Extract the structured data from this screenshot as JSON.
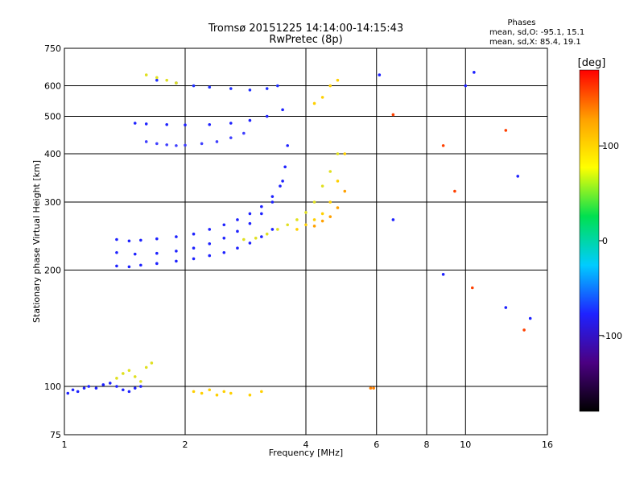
{
  "chart_data": {
    "type": "scatter",
    "title": "Tromsø 20151225 14:14:00-14:15:43",
    "subtitle": "RwPretec (8p)",
    "stats": {
      "heading": "Phases",
      "line_o": "mean, sd,O: -95.1, 15.1",
      "line_x": "mean, sd,X:  85.4, 19.1"
    },
    "xlabel": "Frequency [MHz]",
    "ylabel": "Stationary phase Virtual Height [km]",
    "x_scale": "log",
    "y_scale": "log",
    "xlim": [
      1,
      16
    ],
    "ylim": [
      75,
      750
    ],
    "x_ticks": [
      1,
      2,
      4,
      6,
      8,
      10,
      16
    ],
    "y_ticks": [
      75,
      100,
      200,
      300,
      400,
      500,
      600,
      750
    ],
    "grid": true,
    "colorbar": {
      "label": "[deg]",
      "range": [
        -180,
        180
      ],
      "ticks": [
        100,
        0,
        -100
      ],
      "colors": [
        "#000000",
        "#4b0082",
        "#1e22ff",
        "#00ccff",
        "#00e050",
        "#ffff00",
        "#ffa000",
        "#ff0000"
      ]
    },
    "series": [
      {
        "color": "#1e22ff",
        "x": [
          1.02,
          1.05,
          1.08,
          1.12,
          1.15,
          1.2,
          1.25,
          1.3,
          1.35,
          1.4,
          1.45,
          1.5,
          1.55
        ],
        "y": [
          96,
          98,
          97,
          99,
          100,
          99,
          101,
          102,
          100,
          98,
          97,
          99,
          100
        ]
      },
      {
        "color": "#e0e020",
        "x": [
          1.35,
          1.4,
          1.45,
          1.5,
          1.55,
          1.6,
          1.65
        ],
        "y": [
          105,
          108,
          110,
          106,
          103,
          112,
          115
        ]
      },
      {
        "color": "#ffd000",
        "x": [
          2.1,
          2.2,
          2.3,
          2.4,
          2.5,
          2.6,
          2.9,
          3.1
        ],
        "y": [
          97,
          96,
          98,
          95,
          97,
          96,
          95,
          97
        ]
      },
      {
        "color": "#ff8000",
        "x": [
          5.8,
          5.9
        ],
        "y": [
          99,
          99
        ]
      },
      {
        "color": "#1e22ff",
        "x": [
          1.35,
          1.45,
          1.55,
          1.7,
          1.9,
          2.1,
          2.3,
          2.5,
          2.7,
          2.9,
          3.1,
          3.3
        ],
        "y": [
          205,
          204,
          206,
          208,
          211,
          214,
          218,
          222,
          228,
          235,
          244,
          255
        ]
      },
      {
        "color": "#1e22ff",
        "x": [
          1.35,
          1.45,
          1.55,
          1.7,
          1.9,
          2.1,
          2.3,
          2.5,
          2.7,
          2.9,
          3.1,
          3.3,
          3.5
        ],
        "y": [
          240,
          238,
          239,
          241,
          244,
          248,
          255,
          262,
          270,
          280,
          292,
          310,
          340
        ]
      },
      {
        "color": "#1e22ff",
        "x": [
          1.35,
          1.5,
          1.7,
          1.9,
          2.1,
          2.3,
          2.5,
          2.7,
          2.9,
          3.1,
          3.3,
          3.45,
          3.55,
          3.6
        ],
        "y": [
          222,
          220,
          221,
          224,
          228,
          234,
          242,
          252,
          264,
          280,
          300,
          330,
          370,
          420
        ]
      },
      {
        "color": "#4040ff",
        "x": [
          1.6,
          1.7,
          1.8,
          1.9,
          2.0,
          2.2,
          2.4,
          2.6,
          2.8
        ],
        "y": [
          430,
          425,
          422,
          420,
          421,
          425,
          430,
          440,
          452
        ]
      },
      {
        "color": "#1e22ff",
        "x": [
          1.5,
          1.6,
          1.8,
          2.0,
          2.3,
          2.6,
          2.9,
          3.2,
          3.5
        ],
        "y": [
          480,
          478,
          476,
          475,
          476,
          480,
          488,
          500,
          520
        ]
      },
      {
        "color": "#2030ff",
        "x": [
          1.7,
          1.9,
          2.1,
          2.3,
          2.6,
          2.9,
          3.2,
          3.4
        ],
        "y": [
          620,
          610,
          600,
          595,
          590,
          585,
          590,
          600
        ]
      },
      {
        "color": "#e0e020",
        "x": [
          1.6,
          1.7,
          1.8,
          1.9
        ],
        "y": [
          640,
          630,
          620,
          610
        ]
      },
      {
        "color": "#e0e020",
        "x": [
          2.8,
          3.0,
          3.2,
          3.4,
          3.6,
          3.8,
          4.0,
          4.2,
          4.4,
          4.6,
          4.8
        ],
        "y": [
          240,
          242,
          248,
          255,
          262,
          270,
          282,
          300,
          330,
          360,
          400
        ]
      },
      {
        "color": "#ffd000",
        "x": [
          3.8,
          4.0,
          4.2,
          4.4,
          4.6,
          4.8,
          5.0
        ],
        "y": [
          255,
          262,
          270,
          280,
          300,
          340,
          400
        ]
      },
      {
        "color": "#ffa000",
        "x": [
          4.2,
          4.4,
          4.6,
          4.8,
          5.0
        ],
        "y": [
          260,
          268,
          275,
          290,
          320
        ]
      },
      {
        "color": "#ffd000",
        "x": [
          4.2,
          4.4,
          4.6,
          4.8
        ],
        "y": [
          540,
          560,
          600,
          620
        ]
      },
      {
        "color": "#ff4000",
        "x": [
          6.6,
          8.8,
          9.4,
          10.4,
          12.6,
          14.0
        ],
        "y": [
          505,
          420,
          320,
          180,
          460,
          140
        ]
      },
      {
        "color": "#1e22ff",
        "x": [
          6.1,
          6.6,
          8.8,
          10.0,
          10.5,
          12.6,
          13.5,
          14.5
        ],
        "y": [
          640,
          270,
          195,
          600,
          650,
          160,
          350,
          150
        ]
      }
    ]
  }
}
